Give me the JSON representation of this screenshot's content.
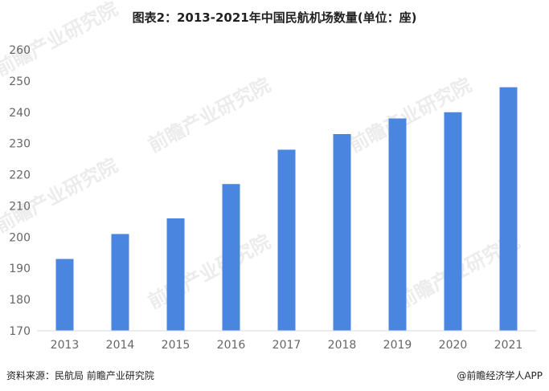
{
  "chart_data": {
    "type": "bar",
    "title": "图表2：2013-2021年中国民航机场数量(单位：座)",
    "categories": [
      "2013",
      "2014",
      "2015",
      "2016",
      "2017",
      "2018",
      "2019",
      "2020",
      "2021"
    ],
    "values": [
      193,
      201,
      206,
      217,
      228,
      233,
      238,
      240,
      248
    ],
    "ylim": [
      170,
      260
    ],
    "yticks": [
      170,
      180,
      190,
      200,
      210,
      220,
      230,
      240,
      250,
      260
    ],
    "xlabel": "",
    "ylabel": "",
    "grid": false,
    "legend": "none",
    "bar_color": "#4a86e0"
  },
  "footer": {
    "source": "资料来源：民航局 前瞻产业研究院",
    "brand": "@前瞻经济学人APP"
  },
  "watermark": {
    "text": "前瞻产业研究院"
  }
}
